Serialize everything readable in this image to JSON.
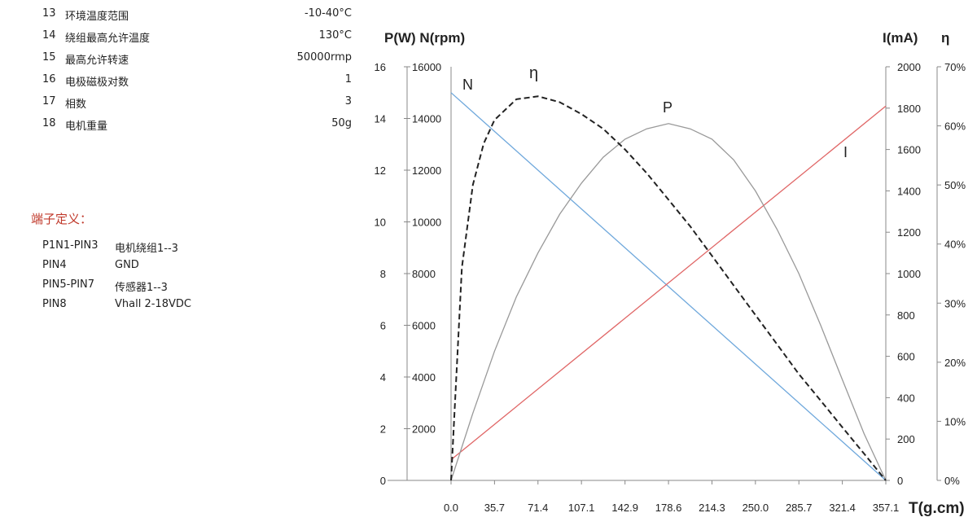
{
  "specs": [
    {
      "num": "13",
      "label": "环境温度范围",
      "value": "-10-40°C"
    },
    {
      "num": "14",
      "label": "绕组最高允许温度",
      "value": "130°C"
    },
    {
      "num": "15",
      "label": "最高允许转速",
      "value": "50000rmp"
    },
    {
      "num": "16",
      "label": "电极磁极对数",
      "value": "1"
    },
    {
      "num": "17",
      "label": "相数",
      "value": "3"
    },
    {
      "num": "18",
      "label": "电机重量",
      "value": "50g"
    }
  ],
  "pins": {
    "title": "端子定义：",
    "rows": [
      {
        "pin": "P1N1-PIN3",
        "desc": "电机绕组1--3"
      },
      {
        "pin": "PIN4",
        "desc": "GND"
      },
      {
        "pin": "PIN5-PIN7",
        "desc": "传感器1--3"
      },
      {
        "pin": "PIN8",
        "desc": "Vhall  2-18VDC"
      }
    ]
  },
  "chart_data": {
    "type": "line",
    "left_axis_label": "P(W) N(rpm)",
    "right_axis_label_current": "I(mA)",
    "right_axis_label_eff": "η",
    "xlabel": "T(g.cm)",
    "x_ticks": [
      "0.0",
      "35.7",
      "71.4",
      "107.1",
      "142.9",
      "178.6",
      "214.3",
      "250.0",
      "285.7",
      "321.4",
      "357.1"
    ],
    "p_ticks": [
      "0",
      "2",
      "4",
      "6",
      "8",
      "10",
      "12",
      "14",
      "16"
    ],
    "n_ticks": [
      "2000",
      "4000",
      "6000",
      "8000",
      "10000",
      "12000",
      "14000",
      "16000"
    ],
    "i_ticks": [
      "0",
      "200",
      "400",
      "600",
      "800",
      "1000",
      "1200",
      "1400",
      "1600",
      "1800",
      "2000"
    ],
    "eff_ticks": [
      "0%",
      "10%",
      "20%",
      "30%",
      "40%",
      "50%",
      "60%",
      "70%"
    ],
    "xlim": [
      0,
      357.1
    ],
    "p_lim": [
      0,
      16
    ],
    "n_lim": [
      0,
      16000
    ],
    "i_lim": [
      0,
      2000
    ],
    "eff_lim": [
      0,
      70
    ],
    "series": [
      {
        "name": "N",
        "axis": "n",
        "color": "#6fa8dc",
        "style": "solid",
        "x": [
          0,
          357.1
        ],
        "values": [
          15000,
          0
        ]
      },
      {
        "name": "I",
        "axis": "i",
        "color": "#e06666",
        "style": "solid",
        "x": [
          0,
          357.1
        ],
        "values": [
          100,
          1810
        ]
      },
      {
        "name": "P",
        "axis": "p",
        "color": "#999999",
        "style": "solid",
        "x": [
          0,
          17.9,
          35.7,
          53.6,
          71.4,
          89.3,
          107.1,
          125,
          142.9,
          160.7,
          178.6,
          196.4,
          214.3,
          232.1,
          250,
          267.9,
          285.7,
          303.6,
          321.4,
          339.3,
          357.1
        ],
        "values": [
          0,
          2.6,
          5.0,
          7.1,
          8.8,
          10.3,
          11.5,
          12.5,
          13.2,
          13.6,
          13.8,
          13.6,
          13.2,
          12.4,
          11.2,
          9.7,
          8.0,
          6.0,
          3.9,
          1.8,
          0
        ]
      },
      {
        "name": "η",
        "axis": "eff",
        "color": "#222222",
        "style": "dashed",
        "x": [
          0,
          8.9,
          17.9,
          26.8,
          35.7,
          53.6,
          71.4,
          89.3,
          107.1,
          125,
          142.9,
          160.7,
          178.6,
          196.4,
          214.3,
          232.1,
          250,
          267.9,
          285.7,
          303.6,
          321.4,
          339.3,
          357.1
        ],
        "values": [
          0,
          36,
          50,
          57,
          61,
          64.5,
          65,
          64,
          62,
          59.5,
          56,
          52,
          47.5,
          43,
          38,
          33,
          28,
          23,
          18,
          13.5,
          9,
          4.5,
          0
        ]
      }
    ],
    "curve_labels": {
      "n": "N",
      "eff": "η",
      "p": "P",
      "i": "I"
    }
  }
}
